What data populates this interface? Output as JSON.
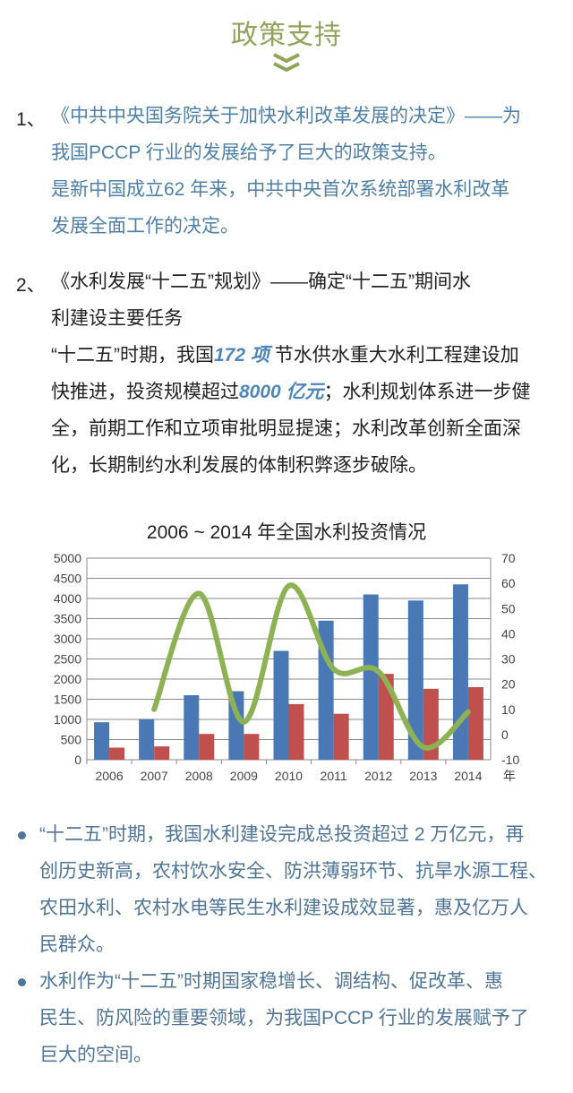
{
  "heading": "政策支持",
  "section1": {
    "number": "1、",
    "lines": [
      "《中共中央国务院关于加快水利改革发展的决定》——为",
      "我国PCCP 行业的发展给予了巨大的政策支持。",
      "是新中国成立62 年来，中共中央首次系统部署水利改革",
      "发展全面工作的决定。"
    ]
  },
  "section2": {
    "number": "2、",
    "lines": [
      "《水利发展“十二五”规划》——确定“十二五”期间水",
      "利建设主要任务"
    ],
    "line3": {
      "a": "“十二五”时期，我国",
      "em": "172 项",
      "b": "节水供水重大水利工程建设加"
    },
    "line4": {
      "a": "快推进，投资规模超过",
      "em": "8000 亿元",
      "b": "；水利规划体系进一步健"
    },
    "rest": [
      "全，前期工作和立项审批明显提速；水利改革创新全面深",
      "化，长期制约水利发展的体制积弊逐步破除。"
    ]
  },
  "chart_data": {
    "type": "bar",
    "title": "2006 ~ 2014 年全国水利投资情况",
    "categories": [
      "2006",
      "2007",
      "2008",
      "2009",
      "2010",
      "2011",
      "2012",
      "2013",
      "2014"
    ],
    "xlabel": "年",
    "ylim": [
      0,
      5000
    ],
    "y_ticks": [
      "0",
      "500",
      "1000",
      "1500",
      "2000",
      "2500",
      "3000",
      "3500",
      "4000",
      "4500",
      "5000"
    ],
    "y2lim": [
      -10,
      70
    ],
    "y2_ticks": [
      "-10",
      "0",
      "10",
      "20",
      "30",
      "40",
      "50",
      "60",
      "70"
    ],
    "grid": true,
    "series": [
      {
        "name": "series-blue",
        "axis": "left",
        "type": "bar",
        "color": "#4a78b5",
        "values": [
          930,
          1010,
          1600,
          1700,
          2700,
          3450,
          4100,
          3950,
          4350
        ]
      },
      {
        "name": "series-red",
        "axis": "left",
        "type": "bar",
        "color": "#c0504d",
        "values": [
          300,
          330,
          640,
          640,
          1380,
          1140,
          2130,
          1760,
          1800
        ]
      },
      {
        "name": "series-green",
        "axis": "right",
        "type": "line",
        "color": "#8db254",
        "values": [
          null,
          10,
          56,
          5,
          59,
          26,
          25,
          -5,
          9
        ]
      }
    ]
  },
  "bullets": [
    {
      "lines": [
        "“十二五”时期，我国水利建设完成总投资超过 2 万亿元，再",
        "创历史新高，农村饮水安全、防洪薄弱环节、抗旱水源工程、",
        "农田水利、农村水电等民生水利建设成效显著，惠及亿万人",
        "民群众。"
      ]
    },
    {
      "lines": [
        "水利作为“十二五”时期国家稳增长、调结构、促改革、惠",
        "民生、防风险的重要领域，为我国PCCP 行业的发展赋予了",
        "巨大的空间。"
      ]
    }
  ]
}
